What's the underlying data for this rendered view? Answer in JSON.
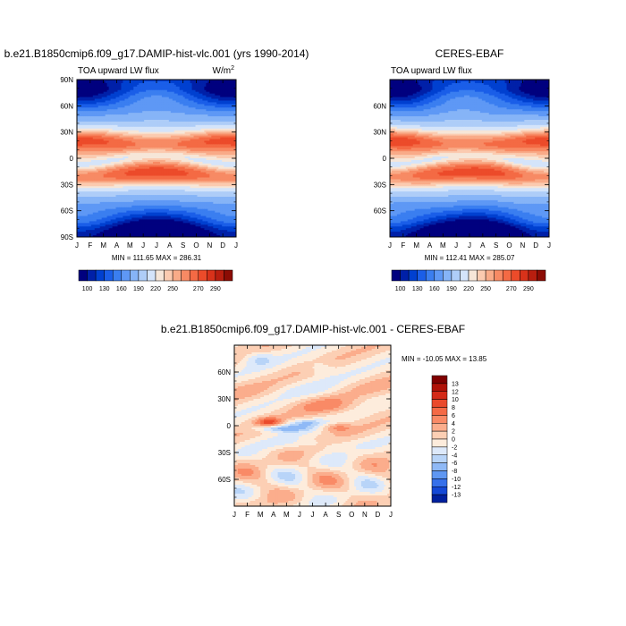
{
  "chart_data": [
    {
      "type": "heatmap",
      "title": "b.e21.B1850cmip6.f09_g17.DAMIP-hist-vlc.001 (yrs 1990-2014)",
      "subtitle": "TOA upward LW flux",
      "units": "W/m",
      "units_sup": "2",
      "x_tick_labels": [
        "J",
        "F",
        "M",
        "A",
        "M",
        "J",
        "J",
        "A",
        "S",
        "O",
        "N",
        "D",
        "J"
      ],
      "y_tick_labels": [
        "90N",
        "60N",
        "30N",
        "0",
        "30S",
        "60S",
        "90S"
      ],
      "ylim": [
        -90,
        90
      ],
      "stats": "MIN = 111.65 MAX = 286.31",
      "colorbar": {
        "orientation": "horizontal",
        "labels": [
          "100",
          "130",
          "160",
          "190",
          "220",
          "250",
          "270",
          "290"
        ],
        "colors": [
          "#00007f",
          "#0020a8",
          "#0040d0",
          "#1a5ee8",
          "#3a7ef0",
          "#5e98f5",
          "#86b4f7",
          "#aecdf8",
          "#d4e4fa",
          "#f6e6d8",
          "#fbcbb0",
          "#f9ab88",
          "#f78a64",
          "#f46a44",
          "#ec4b2a",
          "#d8321a",
          "#b81e0f",
          "#8c0c04"
        ]
      }
    },
    {
      "type": "heatmap",
      "title": "CERES-EBAF",
      "subtitle": "TOA upward LW flux",
      "x_tick_labels": [
        "J",
        "F",
        "M",
        "A",
        "M",
        "J",
        "J",
        "A",
        "S",
        "O",
        "N",
        "D",
        "J"
      ],
      "y_tick_labels": [
        "60N",
        "30N",
        "0",
        "30S",
        "60S"
      ],
      "ylim": [
        -90,
        90
      ],
      "stats": "MIN = 112.41 MAX = 285.07",
      "colorbar": {
        "orientation": "horizontal",
        "labels": [
          "100",
          "130",
          "160",
          "190",
          "220",
          "250",
          "270",
          "290"
        ],
        "colors": [
          "#00007f",
          "#0020a8",
          "#0040d0",
          "#1a5ee8",
          "#3a7ef0",
          "#5e98f5",
          "#86b4f7",
          "#aecdf8",
          "#d4e4fa",
          "#f6e6d8",
          "#fbcbb0",
          "#f9ab88",
          "#f78a64",
          "#f46a44",
          "#ec4b2a",
          "#d8321a",
          "#b81e0f",
          "#8c0c04"
        ]
      }
    },
    {
      "type": "heatmap",
      "title": "b.e21.B1850cmip6.f09_g17.DAMIP-hist-vlc.001 - CERES-EBAF",
      "x_tick_labels": [
        "J",
        "F",
        "M",
        "A",
        "M",
        "J",
        "J",
        "A",
        "S",
        "O",
        "N",
        "D",
        "J"
      ],
      "y_tick_labels": [
        "60N",
        "30N",
        "0",
        "30S",
        "60S"
      ],
      "ylim": [
        -90,
        90
      ],
      "stats": "MIN = -10.05 MAX =  13.85",
      "colorbar": {
        "orientation": "vertical",
        "labels": [
          "13",
          "12",
          "10",
          "8",
          "6",
          "4",
          "2",
          "0",
          "-2",
          "-4",
          "-6",
          "-8",
          "-10",
          "-12",
          "-13"
        ],
        "colors": [
          "#800000",
          "#b01208",
          "#d42a18",
          "#ea4a2c",
          "#f46a46",
          "#f98a66",
          "#fbad8c",
          "#fccfb4",
          "#fdecdc",
          "#dde9fa",
          "#b8d4f8",
          "#8fb9f6",
          "#5f97f2",
          "#3670ea",
          "#1448d6",
          "#00209e"
        ]
      }
    }
  ]
}
